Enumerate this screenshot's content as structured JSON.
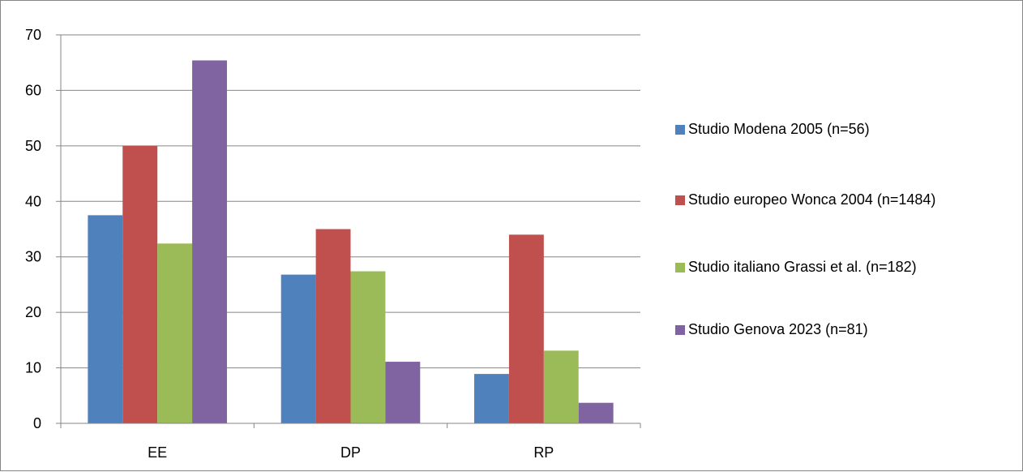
{
  "chart_data": {
    "type": "bar",
    "categories": [
      "EE",
      "DP",
      "RP"
    ],
    "series": [
      {
        "name": "Studio Modena 2005 (n=56)",
        "values": [
          37.5,
          26.8,
          8.9
        ],
        "color": "#4F81BD"
      },
      {
        "name": "Studio europeo Wonca 2004 (n=1484)",
        "values": [
          50,
          35,
          34
        ],
        "color": "#C0504D"
      },
      {
        "name": "Studio italiano Grassi et al. (n=182)",
        "values": [
          32.4,
          27.4,
          13.1
        ],
        "color": "#9BBB59"
      },
      {
        "name": "Studio Genova 2023 (n=81)",
        "values": [
          65.4,
          11.1,
          3.7
        ],
        "color": "#8064A2"
      }
    ],
    "ylim": [
      0,
      70
    ],
    "yticks": [
      0,
      10,
      20,
      30,
      40,
      50,
      60,
      70
    ],
    "title": "",
    "xlabel": "",
    "ylabel": "",
    "grid": true,
    "legend_position": "right"
  }
}
